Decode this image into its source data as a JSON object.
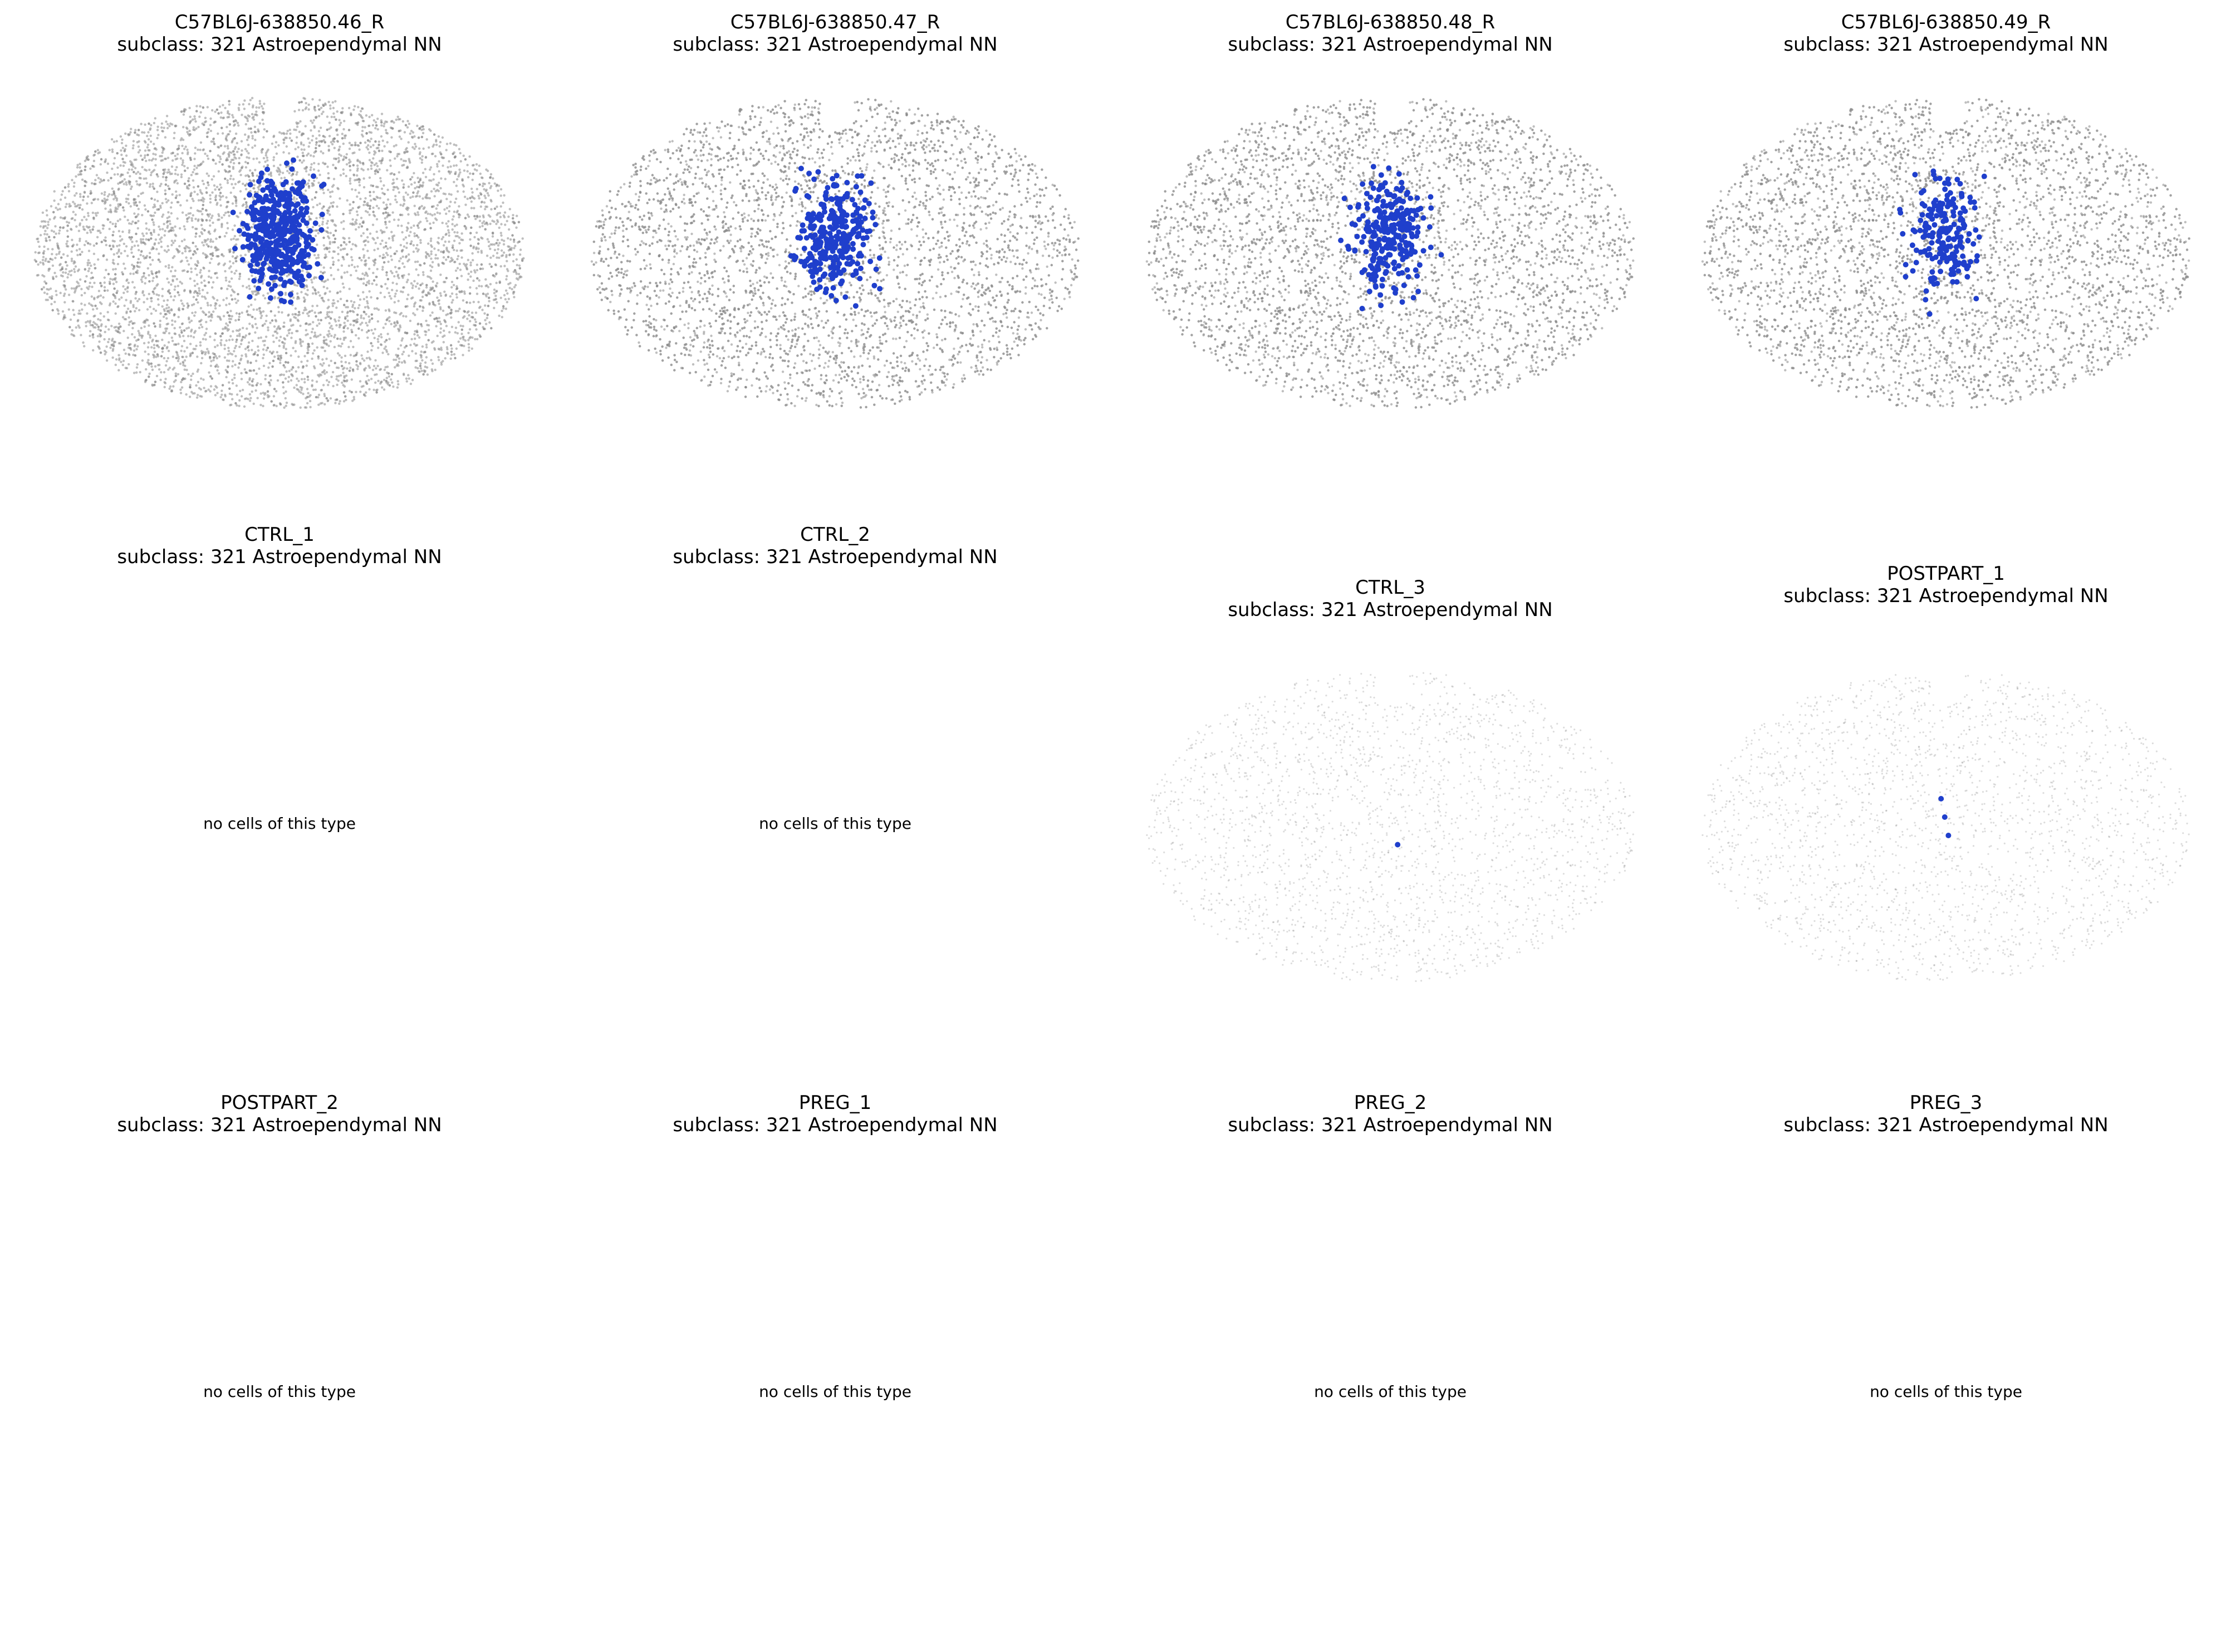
{
  "figure": {
    "accent_color": "#1f3fcc",
    "tissue_color": "#8a8a8a",
    "empty_message": "no cells of this type"
  },
  "chart_data": [
    {
      "type": "scatter",
      "title": "C57BL6J-638850.46_R",
      "subtitle": "subclass: 321 Astroependymal NN",
      "has_cells": true,
      "density": "high",
      "highlight_count": 420
    },
    {
      "type": "scatter",
      "title": "C57BL6J-638850.47_R",
      "subtitle": "subclass: 321 Astroependymal NN",
      "has_cells": true,
      "density": "high",
      "highlight_count": 300
    },
    {
      "type": "scatter",
      "title": "C57BL6J-638850.48_R",
      "subtitle": "subclass: 321 Astroependymal NN",
      "has_cells": true,
      "density": "high",
      "highlight_count": 280
    },
    {
      "type": "scatter",
      "title": "C57BL6J-638850.49_R",
      "subtitle": "subclass: 321 Astroependymal NN",
      "has_cells": true,
      "density": "high",
      "highlight_count": 200
    },
    {
      "type": "scatter",
      "title": "CTRL_1",
      "subtitle": "subclass: 321 Astroependymal NN",
      "has_cells": false
    },
    {
      "type": "scatter",
      "title": "CTRL_2",
      "subtitle": "subclass: 321 Astroependymal NN",
      "has_cells": false
    },
    {
      "type": "scatter",
      "title": "CTRL_3",
      "subtitle": "subclass: 321 Astroependymal NN",
      "has_cells": true,
      "density": "sparse",
      "highlight_count": 1
    },
    {
      "type": "scatter",
      "title": "POSTPART_1",
      "subtitle": "subclass: 321 Astroependymal NN",
      "has_cells": true,
      "density": "sparse",
      "highlight_count": 3
    },
    {
      "type": "scatter",
      "title": "POSTPART_2",
      "subtitle": "subclass: 321 Astroependymal NN",
      "has_cells": false
    },
    {
      "type": "scatter",
      "title": "PREG_1",
      "subtitle": "subclass: 321 Astroependymal NN",
      "has_cells": false
    },
    {
      "type": "scatter",
      "title": "PREG_2",
      "subtitle": "subclass: 321 Astroependymal NN",
      "has_cells": false
    },
    {
      "type": "scatter",
      "title": "PREG_3",
      "subtitle": "subclass: 321 Astroependymal NN",
      "has_cells": false
    }
  ]
}
